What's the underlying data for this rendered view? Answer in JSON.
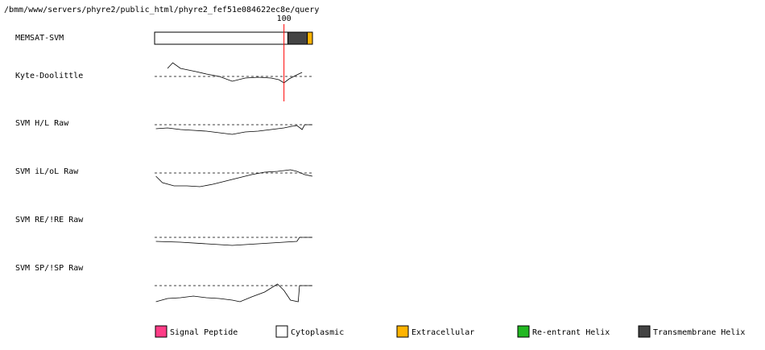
{
  "header": {
    "path": "/bmm/www/servers/phyre2/public_html/phyre2_fef51e084622ec8e/query"
  },
  "xlim": [
    0,
    122
  ],
  "marker": 100,
  "memsat": {
    "label": "MEMSAT-SVM",
    "segments": [
      {
        "start": 0,
        "end": 103,
        "legend": 1
      },
      {
        "start": 103,
        "end": 118,
        "legend": 4
      },
      {
        "start": 118,
        "end": 122,
        "legend": 2
      }
    ]
  },
  "tracks": [
    {
      "label": "Kyte-Doolittle",
      "positions": [
        10,
        14,
        20,
        26,
        32,
        40,
        50,
        60,
        70,
        80,
        90,
        96,
        100,
        104,
        110,
        114
      ],
      "values": [
        1.0,
        1.7,
        1.0,
        0.8,
        0.6,
        0.3,
        0,
        -0.6,
        -0.2,
        -0.1,
        -0.2,
        -0.4,
        -0.8,
        -0.3,
        0.2,
        0.5
      ]
    },
    {
      "label": "SVM H/L Raw",
      "positions": [
        1,
        10,
        20,
        30,
        40,
        50,
        60,
        70,
        80,
        90,
        100,
        106,
        110,
        114,
        116,
        122
      ],
      "values": [
        -0.5,
        -0.4,
        -0.6,
        -0.7,
        -0.8,
        -1.0,
        -1.2,
        -0.9,
        -0.8,
        -0.6,
        -0.4,
        -0.2,
        -0.1,
        -0.6,
        0,
        0
      ]
    },
    {
      "label": "SVM iL/oL Raw",
      "positions": [
        1,
        6,
        15,
        25,
        35,
        45,
        55,
        65,
        75,
        85,
        95,
        105,
        110,
        116,
        122
      ],
      "values": [
        -0.4,
        -1.2,
        -1.6,
        -1.6,
        -1.7,
        -1.4,
        -1.0,
        -0.6,
        -0.2,
        0.1,
        0.2,
        0.4,
        0.2,
        -0.2,
        -0.4
      ]
    },
    {
      "label": "SVM RE/!RE Raw",
      "positions": [
        1,
        20,
        40,
        60,
        80,
        100,
        110,
        112,
        122
      ],
      "values": [
        -0.5,
        -0.6,
        -0.8,
        -1.0,
        -0.8,
        -0.6,
        -0.5,
        0,
        0
      ]
    },
    {
      "label": "SVM SP/!SP Raw",
      "positions": [
        1,
        10,
        20,
        30,
        40,
        50,
        60,
        66,
        75,
        85,
        95,
        100,
        105,
        111,
        112,
        122
      ],
      "values": [
        -2.0,
        -1.6,
        -1.5,
        -1.3,
        -1.5,
        -1.6,
        -1.8,
        -2.0,
        -1.4,
        -0.8,
        0.2,
        -0.6,
        -1.8,
        -2.0,
        0,
        0
      ]
    }
  ],
  "legend": [
    {
      "label": "Signal Peptide",
      "color": "#ff3d87"
    },
    {
      "label": "Cytoplasmic",
      "color": "#ffffff"
    },
    {
      "label": "Extracellular",
      "color": "#ffb300"
    },
    {
      "label": "Re-entrant Helix",
      "color": "#22b822"
    },
    {
      "label": "Transmembrane Helix",
      "color": "#444444"
    }
  ]
}
